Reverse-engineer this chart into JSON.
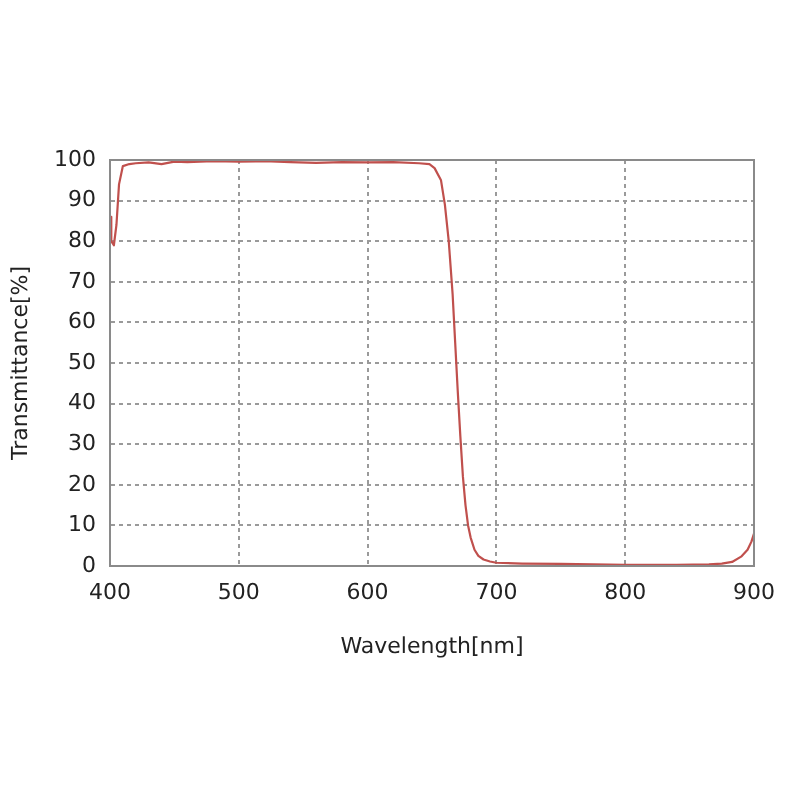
{
  "chart_data": {
    "type": "line",
    "xlabel": "Wavelength[nm]",
    "ylabel": "Transmittance[%]",
    "x": [
      400,
      401,
      403,
      405,
      407,
      410,
      415,
      420,
      430,
      440,
      450,
      460,
      480,
      500,
      520,
      540,
      560,
      580,
      600,
      620,
      640,
      648,
      652,
      657,
      660,
      663,
      666,
      668,
      670,
      672,
      674,
      676,
      678,
      680,
      683,
      686,
      690,
      695,
      700,
      720,
      750,
      800,
      840,
      865,
      875,
      883,
      890,
      895,
      898,
      900
    ],
    "series": [
      {
        "color": "#c0504d",
        "values": [
          86,
          80,
          79,
          84,
          94,
          98.5,
          99,
          99.2,
          99.4,
          99,
          99.6,
          99.5,
          99.7,
          99.6,
          99.7,
          99.5,
          99.3,
          99.5,
          99.4,
          99.5,
          99.2,
          99,
          98,
          95,
          89,
          80,
          67,
          55,
          43,
          32,
          22,
          15,
          10,
          7,
          4,
          2.5,
          1.6,
          1.1,
          0.8,
          0.6,
          0.5,
          0.3,
          0.3,
          0.4,
          0.6,
          1,
          2.3,
          4,
          6,
          8
        ]
      }
    ],
    "xlim": [
      400,
      900
    ],
    "ylim": [
      0,
      100
    ],
    "xticks": [
      400,
      500,
      600,
      700,
      800,
      900
    ],
    "yticks": [
      0,
      10,
      20,
      30,
      40,
      50,
      60,
      70,
      80,
      90,
      100
    ],
    "grid": true,
    "legend": false,
    "marker": "none",
    "line_style": "solid"
  }
}
